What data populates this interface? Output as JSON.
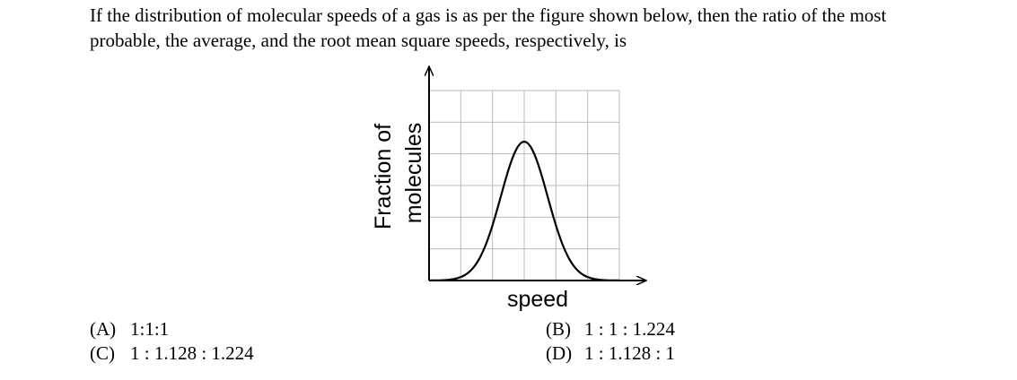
{
  "question": {
    "text": [
      "If the distribution of molecular speeds of a gas is as per the figure shown below, then the ratio of the most",
      "probable, the average, and the root mean square speeds, respectively, is"
    ]
  },
  "figure": {
    "y_label": [
      "Fraction of",
      "molecules"
    ],
    "x_label": "speed"
  },
  "options": [
    {
      "label": "(A)",
      "text": "1:1:1"
    },
    {
      "label": "(B)",
      "text": "1 : 1 : 1.224"
    },
    {
      "label": "(C)",
      "text": "1 : 1.128 : 1.224"
    },
    {
      "label": "(D)",
      "text": "1 : 1.128 : 1"
    }
  ]
}
